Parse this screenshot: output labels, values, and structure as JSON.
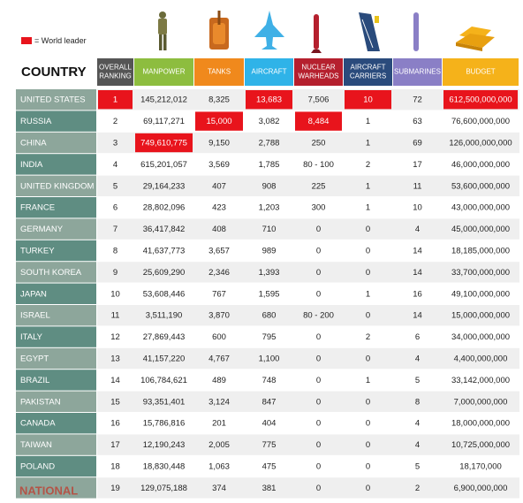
{
  "legend": {
    "text": "= World leader"
  },
  "table": {
    "row_header": "COUNTRY",
    "columns": [
      [
        "OVERALL",
        "RANKING"
      ],
      [
        "MANPOWER"
      ],
      [
        "TANKS"
      ],
      [
        "AIRCRAFT"
      ],
      [
        "NUCLEAR",
        "WARHEADS"
      ],
      [
        "AIRCRAFT",
        "CARRIERS"
      ],
      [
        "SUBMARINES"
      ],
      [
        "BUDGET"
      ]
    ],
    "rows": [
      {
        "country": "UNITED STATES",
        "cells": [
          {
            "text": "1",
            "leader": true
          },
          "145,212,012",
          "8,325",
          {
            "text": "13,683",
            "leader": true
          },
          "7,506",
          {
            "text": "10",
            "leader": true
          },
          "72",
          {
            "text": "612,500,000,000",
            "leader": true
          }
        ]
      },
      {
        "country": "RUSSIA",
        "cells": [
          "2",
          "69,117,271",
          {
            "text": "15,000",
            "leader": true
          },
          "3,082",
          {
            "text": "8,484",
            "leader": true
          },
          "1",
          "63",
          "76,600,000,000"
        ]
      },
      {
        "country": "CHINA",
        "cells": [
          "3",
          {
            "text": "749,610,775",
            "leader": true
          },
          "9,150",
          "2,788",
          "250",
          "1",
          "69",
          "126,000,000,000"
        ]
      },
      {
        "country": "INDIA",
        "cells": [
          "4",
          "615,201,057",
          "3,569",
          "1,785",
          "80 - 100",
          "2",
          "17",
          "46,000,000,000"
        ]
      },
      {
        "country": "UNITED KINGDOM",
        "cells": [
          "5",
          "29,164,233",
          "407",
          "908",
          "225",
          "1",
          "11",
          "53,600,000,000"
        ]
      },
      {
        "country": "FRANCE",
        "cells": [
          "6",
          "28,802,096",
          "423",
          "1,203",
          "300",
          "1",
          "10",
          "43,000,000,000"
        ]
      },
      {
        "country": "GERMANY",
        "cells": [
          "7",
          "36,417,842",
          "408",
          "710",
          "0",
          "0",
          "4",
          "45,000,000,000"
        ]
      },
      {
        "country": "TURKEY",
        "cells": [
          "8",
          "41,637,773",
          "3,657",
          "989",
          "0",
          "0",
          "14",
          "18,185,000,000"
        ]
      },
      {
        "country": "SOUTH KOREA",
        "cells": [
          "9",
          "25,609,290",
          "2,346",
          "1,393",
          "0",
          "0",
          "14",
          "33,700,000,000"
        ]
      },
      {
        "country": "JAPAN",
        "cells": [
          "10",
          "53,608,446",
          "767",
          "1,595",
          "0",
          "1",
          "16",
          "49,100,000,000"
        ]
      },
      {
        "country": "ISRAEL",
        "cells": [
          "11",
          "3,511,190",
          "3,870",
          "680",
          "80 - 200",
          "0",
          "14",
          "15,000,000,000"
        ]
      },
      {
        "country": "ITALY",
        "cells": [
          "12",
          "27,869,443",
          "600",
          "795",
          "0",
          "2",
          "6",
          "34,000,000,000"
        ]
      },
      {
        "country": "EGYPT",
        "cells": [
          "13",
          "41,157,220",
          "4,767",
          "1,100",
          "0",
          "0",
          "4",
          "4,400,000,000"
        ]
      },
      {
        "country": "BRAZIL",
        "cells": [
          "14",
          "106,784,621",
          "489",
          "748",
          "0",
          "1",
          "5",
          "33,142,000,000"
        ]
      },
      {
        "country": "PAKISTAN",
        "cells": [
          "15",
          "93,351,401",
          "3,124",
          "847",
          "0",
          "0",
          "8",
          "7,000,000,000"
        ]
      },
      {
        "country": "CANADA",
        "cells": [
          "16",
          "15,786,816",
          "201",
          "404",
          "0",
          "0",
          "4",
          "18,000,000,000"
        ]
      },
      {
        "country": "TAIWAN",
        "cells": [
          "17",
          "12,190,243",
          "2,005",
          "775",
          "0",
          "0",
          "4",
          "10,725,000,000"
        ]
      },
      {
        "country": "POLAND",
        "cells": [
          "18",
          "18,830,448",
          "1,063",
          "475",
          "0",
          "0",
          "5",
          "18,170,000"
        ]
      },
      {
        "country": null,
        "cells": [
          "19",
          "129,075,188",
          "374",
          "381",
          "0",
          "0",
          "2",
          "6,900,000,000"
        ]
      }
    ]
  },
  "watermark": "NATIONAL"
}
